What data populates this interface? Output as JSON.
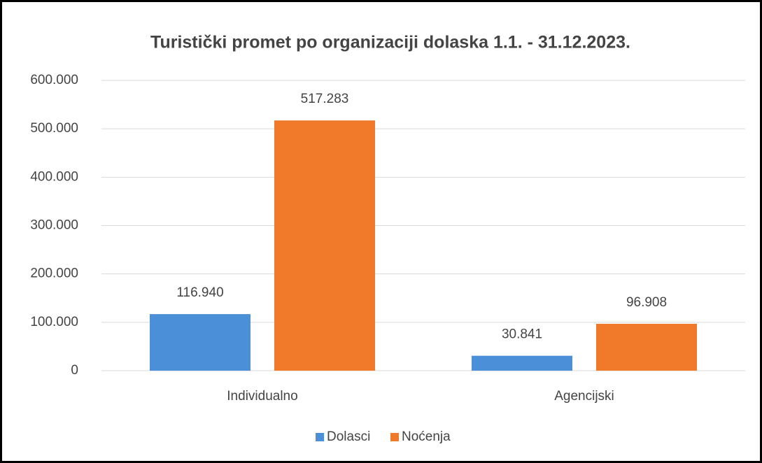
{
  "chart_data": {
    "type": "bar",
    "title": "Turistički promet po organizaciji dolaska 1.1. - 31.12.2023.",
    "categories": [
      "Individualno",
      "Agencijski"
    ],
    "series": [
      {
        "name": "Dolasci",
        "color": "#4a8fd8",
        "values": [
          116940,
          30841
        ],
        "value_labels": [
          "116.940",
          "30.841"
        ]
      },
      {
        "name": "Noćenja",
        "color": "#f07a2a",
        "values": [
          517283,
          96908
        ],
        "value_labels": [
          "517.283",
          "96.908"
        ]
      }
    ],
    "ylim": [
      0,
      600000
    ],
    "yticks": [
      0,
      {
        "value": 100000,
        "label": "100.000"
      },
      {
        "value": 200000,
        "label": "200.000"
      },
      {
        "value": 300000,
        "label": "300.000"
      },
      {
        "value": 400000,
        "label": "400.000"
      },
      {
        "value": 500000,
        "label": "500.000"
      },
      {
        "value": 600000,
        "label": "600.000"
      }
    ],
    "grid": true,
    "legend": "bottom"
  }
}
